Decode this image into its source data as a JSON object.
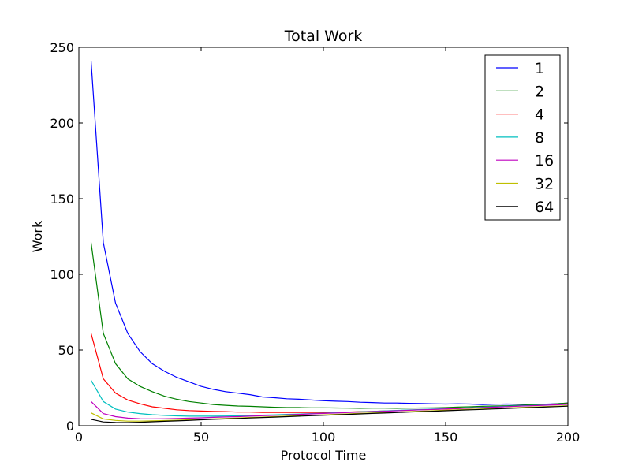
{
  "chart_data": {
    "type": "line",
    "title": "Total Work",
    "xlabel": "Protocol Time",
    "ylabel": "Work",
    "xlim": [
      0,
      200
    ],
    "ylim": [
      0,
      250
    ],
    "xticks": [
      0,
      50,
      100,
      150,
      200
    ],
    "yticks": [
      0,
      50,
      100,
      150,
      200,
      250
    ],
    "grid": false,
    "legend_position": "top-right",
    "x": [
      5,
      10,
      15,
      20,
      25,
      30,
      35,
      40,
      45,
      50,
      55,
      60,
      65,
      70,
      75,
      80,
      85,
      90,
      95,
      100,
      105,
      110,
      115,
      120,
      125,
      130,
      135,
      140,
      145,
      150,
      155,
      160,
      165,
      170,
      175,
      180,
      185,
      190,
      195,
      200
    ],
    "series": [
      {
        "name": "1",
        "color": "#0000ff",
        "values": [
          241,
          121,
          81,
          61,
          49,
          41,
          36,
          32,
          29,
          26,
          24,
          22.5,
          21.5,
          20.5,
          19,
          18.5,
          17.8,
          17.5,
          17,
          16.5,
          16.2,
          16,
          15.5,
          15.3,
          15,
          15,
          14.8,
          14.7,
          14.5,
          14.3,
          14.5,
          14.3,
          14,
          14.2,
          14.3,
          14.2,
          14,
          14.2,
          14.5,
          15
        ]
      },
      {
        "name": "2",
        "color": "#008000",
        "values": [
          121,
          61,
          41,
          31,
          26,
          22.5,
          19.5,
          17.5,
          16,
          15,
          14,
          13.5,
          13,
          12.8,
          12.5,
          12.2,
          12,
          12,
          11.8,
          11.8,
          11.7,
          11.6,
          11.5,
          11.6,
          11.6,
          11.5,
          11.6,
          11.7,
          11.8,
          12,
          12.3,
          12.5,
          12.8,
          13,
          13.2,
          13.5,
          13.8,
          14,
          14.5,
          15
        ]
      },
      {
        "name": "4",
        "color": "#ff0000",
        "values": [
          61,
          31,
          21.5,
          17,
          14.5,
          12.5,
          11.5,
          10.5,
          10,
          9.7,
          9.5,
          9.3,
          9,
          9,
          8.8,
          8.8,
          8.8,
          8.8,
          8.8,
          8.8,
          9,
          9,
          9.3,
          9.5,
          9.8,
          10,
          10.3,
          10.5,
          10.8,
          11,
          11.3,
          11.6,
          12,
          12.3,
          12.6,
          13,
          13.3,
          13.7,
          14,
          14.5
        ]
      },
      {
        "name": "8",
        "color": "#00bfbf",
        "values": [
          30,
          16,
          11,
          9,
          8,
          7.3,
          6.8,
          6.5,
          6.3,
          6.3,
          6.3,
          6.4,
          6.5,
          6.7,
          7,
          7.2,
          7.5,
          7.7,
          8,
          8.3,
          8.6,
          8.9,
          9.2,
          9.5,
          9.8,
          10.1,
          10.4,
          10.7,
          11,
          11.3,
          11.6,
          11.9,
          12.2,
          12.5,
          12.8,
          13.1,
          13.4,
          13.7,
          14,
          14.3
        ]
      },
      {
        "name": "16",
        "color": "#bf00bf",
        "values": [
          16,
          8,
          6,
          5,
          4.6,
          4.5,
          4.6,
          4.8,
          5,
          5.2,
          5.5,
          5.8,
          6,
          6.3,
          6.6,
          6.9,
          7.2,
          7.5,
          7.8,
          8.1,
          8.4,
          8.7,
          9,
          9.3,
          9.6,
          9.9,
          10.2,
          10.5,
          10.8,
          11.1,
          11.4,
          11.7,
          12,
          12.3,
          12.6,
          12.9,
          13.2,
          13.5,
          13.8,
          14.1
        ]
      },
      {
        "name": "32",
        "color": "#bfbf00",
        "values": [
          8.5,
          4.5,
          3.5,
          3,
          3,
          3.2,
          3.4,
          3.6,
          3.9,
          4.2,
          4.5,
          4.8,
          5.1,
          5.4,
          5.7,
          6,
          6.3,
          6.6,
          6.9,
          7.2,
          7.5,
          7.8,
          8.1,
          8.4,
          8.7,
          9,
          9.3,
          9.6,
          9.9,
          10.2,
          10.5,
          10.8,
          11.1,
          11.4,
          11.7,
          12,
          12.3,
          12.6,
          12.9,
          13.2
        ]
      },
      {
        "name": "64",
        "color": "#000000",
        "values": [
          4.2,
          2.5,
          2.2,
          2.1,
          2.3,
          2.6,
          2.9,
          3.2,
          3.5,
          3.9,
          4.2,
          4.5,
          4.8,
          5.1,
          5.4,
          5.7,
          6,
          6.3,
          6.6,
          6.9,
          7.2,
          7.5,
          7.8,
          8.1,
          8.4,
          8.7,
          9,
          9.3,
          9.6,
          9.9,
          10.2,
          10.5,
          10.8,
          11.1,
          11.4,
          11.7,
          12,
          12.3,
          12.6,
          12.9
        ]
      }
    ]
  }
}
